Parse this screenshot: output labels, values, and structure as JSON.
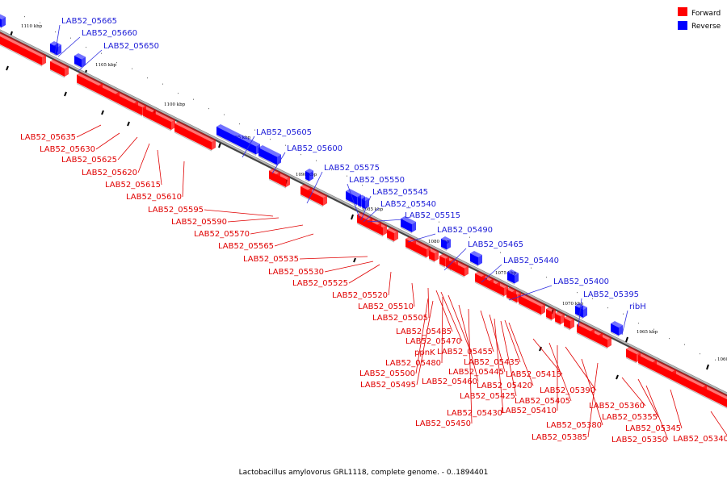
{
  "caption": "Lactobacillus amylovorus GRL1118, complete genome. - 0..1894401",
  "legend": [
    {
      "label": "Forward",
      "color": "#ff0000"
    },
    {
      "label": "Reverse",
      "color": "#0000ff"
    }
  ],
  "strand_colors": {
    "forward": "#ff0000",
    "reverse": "#0000ff",
    "backbone": "#777777"
  },
  "ticks": [
    "1110 kbp",
    "1105 kbp",
    "1100 kbp",
    "1095 kbp",
    "1090 kbp",
    "1085 kbp",
    "1080 kbp",
    "1075 kbp",
    "1070 kbp",
    "1065 kbp",
    "1060 kbp"
  ],
  "reverse_labels": [
    "LAB52_05665",
    "LAB52_05660",
    "LAB52_05650",
    "LAB52_05605",
    "LAB52_05600",
    "LAB52_05575",
    "LAB52_05550",
    "LAB52_05545",
    "LAB52_05540",
    "LAB52_05515",
    "LAB52_05490",
    "LAB52_05465",
    "LAB52_05440",
    "LAB52_05400",
    "LAB52_05395",
    "ribH"
  ],
  "forward_labels": [
    "LAB52_05635",
    "LAB52_05630",
    "LAB52_05625",
    "LAB52_05620",
    "LAB52_05615",
    "LAB52_05610",
    "LAB52_05595",
    "LAB52_05590",
    "LAB52_05570",
    "LAB52_05565",
    "LAB52_05535",
    "LAB52_05530",
    "LAB52_05525",
    "LAB52_05520",
    "LAB52_05510",
    "LAB52_05505",
    "LAB52_05485",
    "LAB52_05470",
    "ppnK",
    "LAB52_05455",
    "LAB52_05480",
    "LAB52_05445",
    "LAB52_05435",
    "LAB52_05500",
    "LAB52_05460",
    "LAB52_05495",
    "LAB52_05420",
    "LAB52_05415",
    "LAB52_05425",
    "LAB52_05390",
    "LAB52_05405",
    "LAB52_05430",
    "LAB52_05410",
    "LAB52_05450",
    "LAB52_05360",
    "LAB52_05355",
    "LAB52_05380",
    "LAB52_05345",
    "LAB52_05385",
    "LAB52_05350",
    "LAB52_05340"
  ]
}
